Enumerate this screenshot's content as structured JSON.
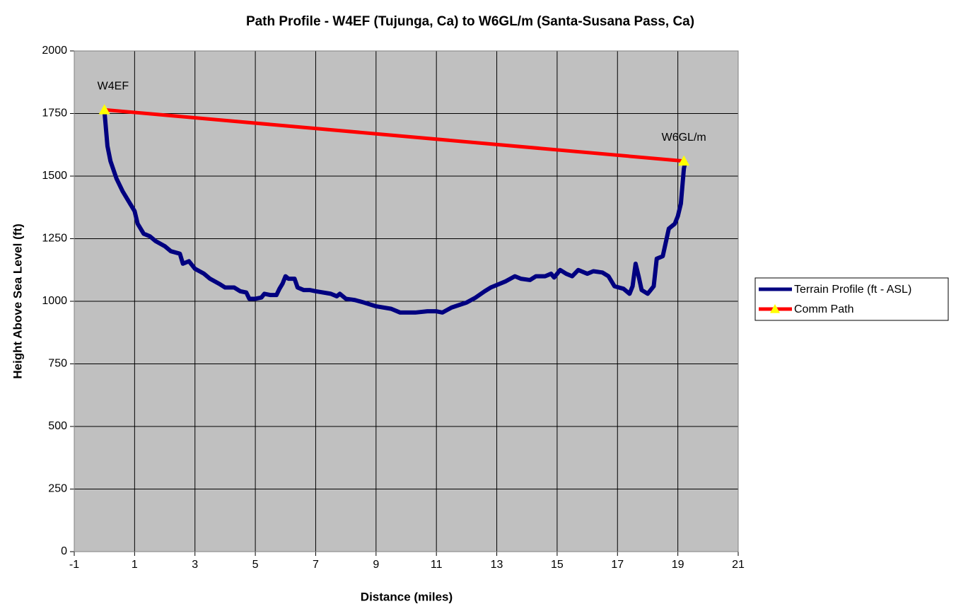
{
  "chart_data": {
    "type": "line",
    "title": "Path Profile - W4EF (Tujunga, Ca) to W6GL/m (Santa-Susana Pass, Ca)",
    "x_label": "Distance (miles)",
    "y_label": "Height Above Sea Level (ft)",
    "xlim": [
      -1,
      21
    ],
    "xticks": [
      -1,
      1,
      3,
      5,
      7,
      9,
      11,
      13,
      15,
      17,
      19,
      21
    ],
    "ylim": [
      0,
      2000
    ],
    "yticks": [
      0,
      250,
      500,
      750,
      1000,
      1250,
      1500,
      1750,
      2000
    ],
    "grid": true,
    "legend": "right",
    "background": "#c0c0c0",
    "annotations": [
      "W4EF",
      "W6GL/m"
    ],
    "series": [
      {
        "name": "Terrain Profile (ft - ASL)",
        "color": "#000080",
        "x": [
          0,
          0.1,
          0.2,
          0.4,
          0.6,
          0.8,
          1.0,
          1.1,
          1.3,
          1.5,
          1.7,
          2.0,
          2.2,
          2.5,
          2.6,
          2.8,
          3.0,
          3.3,
          3.5,
          3.8,
          4.0,
          4.3,
          4.5,
          4.7,
          4.8,
          5.0,
          5.2,
          5.3,
          5.5,
          5.7,
          5.8,
          5.9,
          6.0,
          6.1,
          6.3,
          6.4,
          6.6,
          6.8,
          7.0,
          7.5,
          7.7,
          7.8,
          8.0,
          8.3,
          8.6,
          9.0,
          9.5,
          9.8,
          10.0,
          10.3,
          10.7,
          11.0,
          11.2,
          11.5,
          12.0,
          12.3,
          12.6,
          12.8,
          13.0,
          13.3,
          13.6,
          13.8,
          14.1,
          14.3,
          14.6,
          14.8,
          14.9,
          15.1,
          15.3,
          15.5,
          15.7,
          16.0,
          16.2,
          16.5,
          16.7,
          16.9,
          17.2,
          17.4,
          17.5,
          17.6,
          17.7,
          17.8,
          18.0,
          18.2,
          18.3,
          18.5,
          18.7,
          18.9,
          19.0,
          19.1,
          19.2,
          19.25
        ],
        "values": [
          1760,
          1620,
          1560,
          1490,
          1440,
          1400,
          1360,
          1310,
          1270,
          1260,
          1240,
          1220,
          1200,
          1190,
          1150,
          1160,
          1130,
          1110,
          1090,
          1070,
          1055,
          1055,
          1040,
          1035,
          1010,
          1010,
          1015,
          1030,
          1025,
          1025,
          1050,
          1070,
          1100,
          1090,
          1090,
          1055,
          1045,
          1045,
          1040,
          1030,
          1020,
          1030,
          1010,
          1005,
          995,
          980,
          970,
          955,
          955,
          955,
          960,
          960,
          955,
          975,
          995,
          1015,
          1040,
          1055,
          1065,
          1080,
          1100,
          1090,
          1085,
          1100,
          1100,
          1110,
          1095,
          1125,
          1110,
          1100,
          1125,
          1110,
          1120,
          1115,
          1100,
          1060,
          1050,
          1030,
          1060,
          1150,
          1100,
          1045,
          1030,
          1060,
          1170,
          1180,
          1290,
          1310,
          1340,
          1390,
          1530,
          1560
        ]
      },
      {
        "name": "Comm Path",
        "color": "#ff0000",
        "marker_color": "#ffff00",
        "x": [
          0,
          19.2
        ],
        "values": [
          1765,
          1560
        ]
      }
    ]
  }
}
